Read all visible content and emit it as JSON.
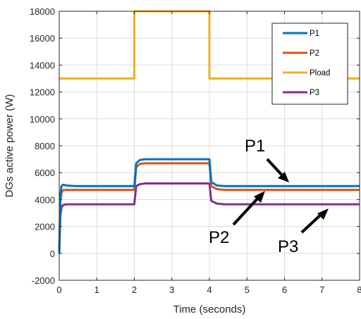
{
  "chart_data": {
    "type": "line",
    "title": "",
    "xlabel": "Time (seconds)",
    "ylabel": "DGs active power (W)",
    "xlim": [
      0,
      8
    ],
    "ylim": [
      -2000,
      18000
    ],
    "xticks": [
      0,
      1,
      2,
      3,
      4,
      5,
      6,
      7,
      8
    ],
    "yticks": [
      -2000,
      0,
      2000,
      4000,
      6000,
      8000,
      10000,
      12000,
      14000,
      16000,
      18000
    ],
    "grid": true,
    "legend_position": "top-right",
    "series": [
      {
        "name": "P1",
        "color": "#0072BD",
        "x": [
          0,
          0.03,
          0.06,
          0.1,
          0.2,
          0.4,
          1.99,
          2.0,
          2.05,
          2.15,
          2.3,
          3.99,
          4.0,
          4.05,
          4.2,
          4.4,
          8
        ],
        "y": [
          0,
          4300,
          5000,
          5100,
          5050,
          5000,
          5000,
          5000,
          6700,
          6950,
          7000,
          7000,
          7000,
          5300,
          5050,
          5000,
          5000
        ]
      },
      {
        "name": "P2",
        "color": "#D95319",
        "x": [
          0,
          0.03,
          0.06,
          0.1,
          0.2,
          0.4,
          1.99,
          2.0,
          2.05,
          2.15,
          2.3,
          3.99,
          4.0,
          4.05,
          4.2,
          4.4,
          8
        ],
        "y": [
          0,
          3800,
          4500,
          4700,
          4720,
          4720,
          4720,
          4720,
          6400,
          6650,
          6700,
          6700,
          6700,
          5000,
          4780,
          4720,
          4720
        ]
      },
      {
        "name": "Pload",
        "color": "#EDB120",
        "x": [
          0,
          2.0,
          2.0,
          4.0,
          4.0,
          8
        ],
        "y": [
          13000,
          13000,
          18000,
          18000,
          13000,
          13000
        ]
      },
      {
        "name": "P3",
        "color": "#7E2F8E",
        "x": [
          0,
          0.03,
          0.06,
          0.1,
          0.2,
          0.4,
          1.99,
          2.0,
          2.05,
          2.15,
          2.3,
          3.99,
          4.0,
          4.05,
          4.2,
          4.4,
          8
        ],
        "y": [
          0,
          2800,
          3400,
          3600,
          3650,
          3650,
          3650,
          3650,
          5000,
          5150,
          5200,
          5200,
          5200,
          3900,
          3700,
          3650,
          3650
        ]
      }
    ],
    "annotations": [
      {
        "text": "P1",
        "target": "P1"
      },
      {
        "text": "P2",
        "target": "P2"
      },
      {
        "text": "P3",
        "target": "P3"
      }
    ]
  }
}
